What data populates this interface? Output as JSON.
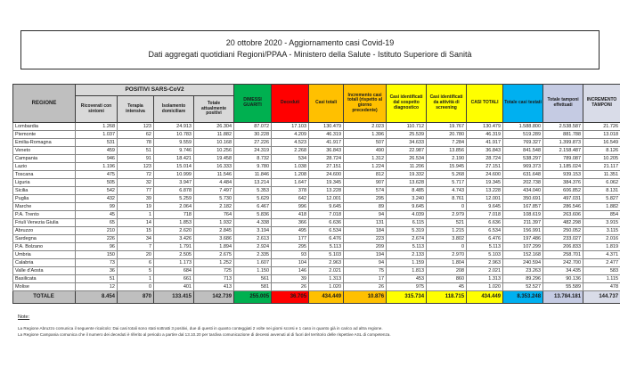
{
  "header": {
    "line1": "20 ottobre 2020 - Aggiornamento casi Covid-19",
    "line2": "Dati aggregati quotidiani Regioni/PPAA - Ministero della Salute - Istituto Superiore di Sanità"
  },
  "table": {
    "region_header": "REGIONE",
    "group_header": "POSITIVI SARS-CoV2",
    "sub_headers": [
      "Ricoverati con sintomi",
      "Terapia intensiva",
      "Isolamento domiciliare",
      "Totale attualmente positivi"
    ],
    "col_headers": [
      "DIMESSI GUARITI",
      "Deceduti",
      "Casi totali",
      "Incremento casi totali (rispetto al giorno precedente)",
      "Casi identificati dal sospetto diagnostico",
      "Casi identificati da attività di screening",
      "CASI TOTALI",
      "Totale casi testati",
      "Totale tamponi effettuati",
      "INCREMENTO TAMPONI"
    ],
    "rows": [
      {
        "region": "Lombardia",
        "values": [
          "1.268",
          "123",
          "24.913",
          "26.304",
          "87.072",
          "17.103",
          "130.479",
          "2.023",
          "110.712",
          "19.767",
          "130.479",
          "1.588.800",
          "2.538.587",
          "21.726"
        ]
      },
      {
        "region": "Piemonte",
        "values": [
          "1.037",
          "62",
          "10.783",
          "11.882",
          "30.228",
          "4.209",
          "46.319",
          "1.396",
          "25.539",
          "20.780",
          "46.319",
          "519.289",
          "881.788",
          "13.018"
        ]
      },
      {
        "region": "Emilia-Romagna",
        "values": [
          "531",
          "78",
          "9.559",
          "10.168",
          "27.226",
          "4.523",
          "41.917",
          "507",
          "34.633",
          "7.284",
          "41.917",
          "769.327",
          "1.399.873",
          "16.549"
        ]
      },
      {
        "region": "Veneto",
        "values": [
          "459",
          "51",
          "9.746",
          "10.256",
          "24.319",
          "2.268",
          "36.843",
          "490",
          "22.987",
          "13.856",
          "36.843",
          "841.548",
          "2.158.487",
          "8.126"
        ]
      },
      {
        "region": "Campania",
        "values": [
          "946",
          "91",
          "18.421",
          "19.458",
          "8.732",
          "534",
          "28.724",
          "1.312",
          "26.534",
          "2.190",
          "28.724",
          "538.297",
          "789.087",
          "10.205"
        ]
      },
      {
        "region": "Lazio",
        "values": [
          "1.196",
          "123",
          "15.014",
          "16.333",
          "9.780",
          "1.038",
          "27.151",
          "1.224",
          "11.206",
          "15.945",
          "27.151",
          "969.373",
          "1.185.024",
          "21.117"
        ]
      },
      {
        "region": "Toscana",
        "values": [
          "475",
          "72",
          "10.999",
          "11.546",
          "11.846",
          "1.208",
          "24.600",
          "812",
          "19.332",
          "5.268",
          "24.600",
          "631.648",
          "939.153",
          "11.351"
        ]
      },
      {
        "region": "Liguria",
        "values": [
          "505",
          "32",
          "3.947",
          "4.484",
          "13.214",
          "1.647",
          "19.345",
          "907",
          "13.628",
          "5.717",
          "19.345",
          "202.738",
          "384.376",
          "6.062"
        ]
      },
      {
        "region": "Sicilia",
        "values": [
          "542",
          "77",
          "6.878",
          "7.497",
          "5.353",
          "378",
          "13.228",
          "574",
          "8.485",
          "4.743",
          "13.228",
          "434.040",
          "606.852",
          "8.131"
        ]
      },
      {
        "region": "Puglia",
        "values": [
          "432",
          "39",
          "5.259",
          "5.730",
          "5.629",
          "642",
          "12.001",
          "295",
          "3.240",
          "8.761",
          "12.001",
          "350.691",
          "497.031",
          "5.827"
        ]
      },
      {
        "region": "Marche",
        "values": [
          "99",
          "19",
          "2.064",
          "2.182",
          "6.467",
          "996",
          "9.645",
          "89",
          "9.645",
          "0",
          "9.645",
          "167.857",
          "286.546",
          "1.882"
        ]
      },
      {
        "region": "P.A. Trento",
        "values": [
          "45",
          "1",
          "718",
          "764",
          "5.836",
          "418",
          "7.018",
          "94",
          "4.039",
          "2.979",
          "7.018",
          "108.619",
          "263.606",
          "854"
        ]
      },
      {
        "region": "Friuli Venezia Giulia",
        "values": [
          "65",
          "14",
          "1.853",
          "1.932",
          "4.338",
          "366",
          "6.636",
          "131",
          "6.115",
          "521",
          "6.636",
          "211.397",
          "482.298",
          "3.915"
        ]
      },
      {
        "region": "Abruzzo",
        "values": [
          "210",
          "15",
          "2.620",
          "2.845",
          "3.194",
          "495",
          "6.534",
          "184",
          "5.319",
          "1.215",
          "6.534",
          "156.991",
          "250.052",
          "3.115"
        ]
      },
      {
        "region": "Sardegna",
        "values": [
          "226",
          "34",
          "3.426",
          "3.686",
          "2.613",
          "177",
          "6.476",
          "223",
          "2.674",
          "3.802",
          "6.476",
          "197.486",
          "233.027",
          "2.016"
        ]
      },
      {
        "region": "P.A. Bolzano",
        "values": [
          "96",
          "7",
          "1.791",
          "1.894",
          "2.924",
          "295",
          "5.113",
          "209",
          "5.113",
          "0",
          "5.113",
          "107.299",
          "206.833",
          "1.819"
        ]
      },
      {
        "region": "Umbria",
        "values": [
          "150",
          "20",
          "2.505",
          "2.675",
          "2.335",
          "93",
          "5.103",
          "194",
          "2.133",
          "2.970",
          "5.103",
          "152.168",
          "258.701",
          "4.371"
        ]
      },
      {
        "region": "Calabria",
        "values": [
          "73",
          "6",
          "1.173",
          "1.252",
          "1.607",
          "104",
          "2.963",
          "94",
          "1.159",
          "1.804",
          "2.963",
          "240.594",
          "242.700",
          "2.477"
        ]
      },
      {
        "region": "Valle d'Aosta",
        "values": [
          "36",
          "5",
          "684",
          "725",
          "1.150",
          "146",
          "2.021",
          "75",
          "1.813",
          "208",
          "2.021",
          "23.263",
          "34.435",
          "583"
        ]
      },
      {
        "region": "Basilicata",
        "values": [
          "51",
          "1",
          "661",
          "713",
          "561",
          "39",
          "1.313",
          "17",
          "453",
          "860",
          "1.313",
          "89.296",
          "90.136",
          "1.115"
        ]
      },
      {
        "region": "Molise",
        "values": [
          "12",
          "0",
          "401",
          "413",
          "581",
          "26",
          "1.020",
          "26",
          "975",
          "45",
          "1.020",
          "52.527",
          "55.589",
          "478"
        ]
      }
    ],
    "total_row": {
      "region": "TOTALE",
      "values": [
        "8.454",
        "870",
        "133.415",
        "142.739",
        "255.005",
        "36.705",
        "434.449",
        "10.876",
        "315.734",
        "118.715",
        "434.449",
        "8.353.248",
        "13.784.181",
        "144.737"
      ]
    }
  },
  "notes": {
    "title": "Note:",
    "note1": "La Regione Abruzzo comunica il seguente ricalcolo: Dai casi totali sono stati sottratti 3 positivi, due di questi in quanto conteggiati 2 volte nei giorni scorsi e 1 caso in quanto già in carico ad altra regione.",
    "note2": "La Regione Campania comunica che il numero dei deceduti è riferito al periodo a partire dal 13.10.20 per tardiva comunicazione di decessi avvenuti al di fuori del territorio delle rispettive ASL di competenza."
  },
  "colors": {
    "header_gray": "#bfbfbf",
    "header_light_gray": "#d9d9d9",
    "recovered_green": "#00b050",
    "deceased_red": "#ff0000",
    "total_cases_orange": "#ffc000",
    "identified_yellow": "#ffff00",
    "tested_blue": "#00b0f0",
    "swabs_periwinkle": "#c5cbe3",
    "swab_increment_lavender": "#d9dce8"
  }
}
